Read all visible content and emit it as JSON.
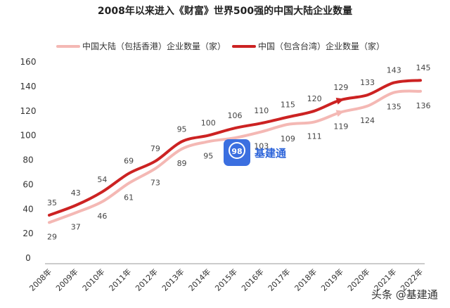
{
  "chart_data": {
    "type": "line",
    "title": "2008年以来进入《财富》世界500强的中国大陆企业数量",
    "categories": [
      "2008年",
      "2009年",
      "2010年",
      "2011年",
      "2012年",
      "2013年",
      "2014年",
      "2015年",
      "2016年",
      "2017年",
      "2018年",
      "2019年",
      "2020年",
      "2021年",
      "2022年"
    ],
    "series": [
      {
        "name": "中国大陆（包括香港）企业数量（家）",
        "color": "#f4b8b4",
        "values": [
          29,
          37,
          46,
          61,
          73,
          89,
          95,
          98,
          103,
          109,
          111,
          119,
          124,
          135,
          136
        ]
      },
      {
        "name": "中国（包含台湾）企业数量（家）",
        "color": "#cc2222",
        "values": [
          35,
          43,
          54,
          69,
          79,
          95,
          100,
          106,
          110,
          115,
          120,
          129,
          133,
          143,
          145
        ]
      }
    ],
    "ylim": [
      0,
      160
    ],
    "yticks": [
      0,
      20,
      40,
      60,
      80,
      100,
      120,
      140,
      160
    ],
    "grid": false,
    "legend_position": "top-center"
  },
  "watermark": {
    "text": "基建通",
    "badge_number": "98"
  },
  "footer": {
    "text": "头条 @基建通"
  }
}
